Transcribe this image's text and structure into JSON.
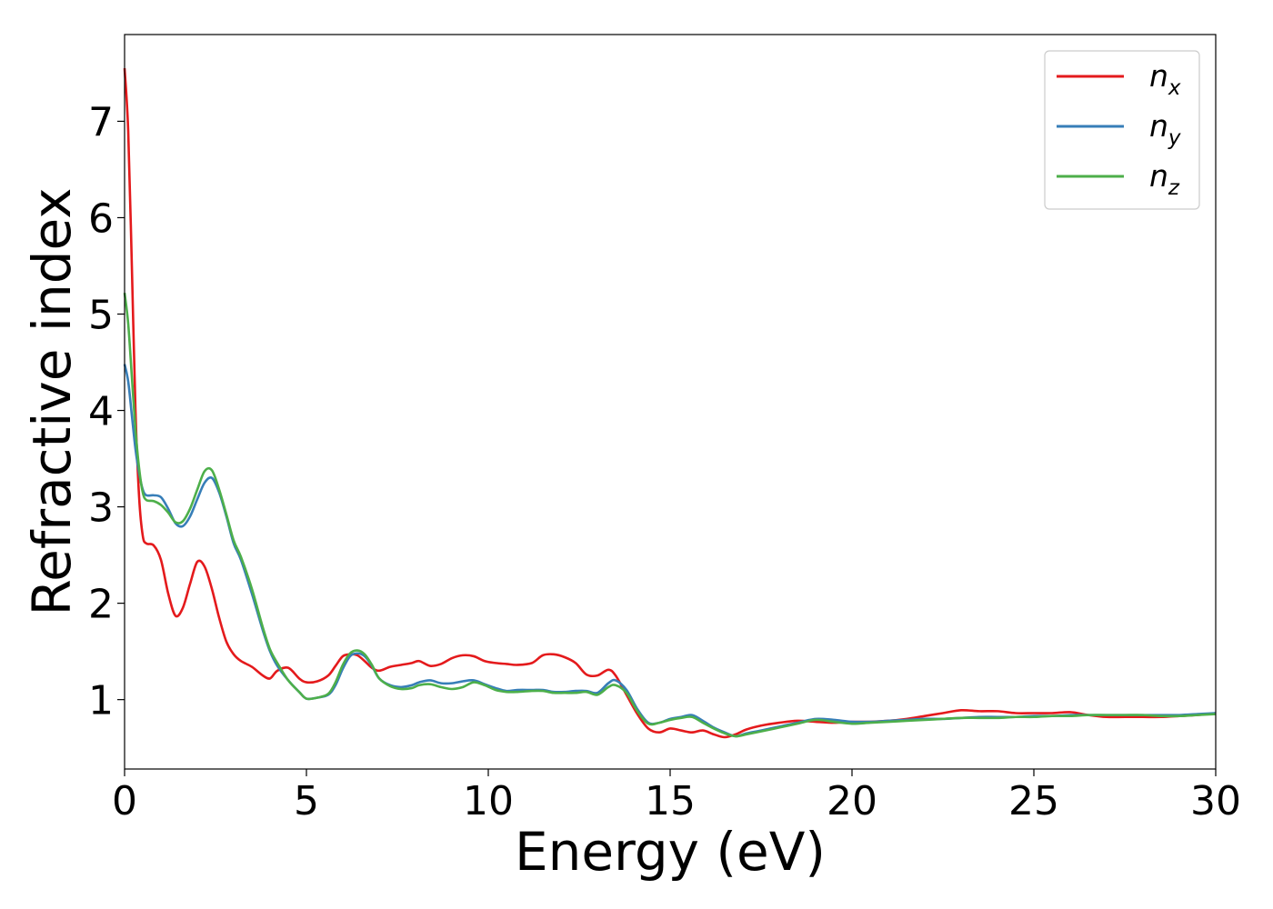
{
  "chart_data": {
    "type": "line",
    "title": "",
    "xlabel": "Energy (eV)",
    "ylabel": "Refractive index",
    "xlim": [
      0,
      30
    ],
    "ylim": [
      0.28,
      7.9
    ],
    "x_ticks": [
      "0",
      "5",
      "10",
      "15",
      "20",
      "25",
      "30"
    ],
    "y_ticks": [
      "1",
      "2",
      "3",
      "4",
      "5",
      "6",
      "7"
    ],
    "grid": false,
    "legend_position": "top-right",
    "series": [
      {
        "name": "n",
        "subscript": "x",
        "color": "#e41a1c",
        "x": [
          0,
          0.1,
          0.2,
          0.3,
          0.4,
          0.5,
          0.6,
          0.8,
          1.0,
          1.2,
          1.4,
          1.6,
          1.8,
          2.0,
          2.2,
          2.4,
          2.6,
          2.8,
          3.0,
          3.2,
          3.5,
          3.8,
          4.0,
          4.2,
          4.5,
          4.8,
          5.0,
          5.3,
          5.6,
          5.8,
          6.0,
          6.2,
          6.4,
          6.6,
          6.8,
          7.0,
          7.3,
          7.6,
          7.9,
          8.1,
          8.4,
          8.7,
          9.0,
          9.3,
          9.6,
          9.9,
          10.2,
          10.5,
          10.8,
          11.2,
          11.5,
          11.8,
          12.1,
          12.4,
          12.7,
          13.0,
          13.3,
          13.5,
          13.8,
          14.1,
          14.4,
          14.7,
          15.0,
          15.3,
          15.6,
          15.9,
          16.2,
          16.5,
          16.8,
          17.1,
          17.5,
          18.0,
          18.5,
          19.0,
          19.5,
          20.0,
          20.5,
          21.0,
          21.5,
          22.0,
          22.5,
          23.0,
          23.5,
          24.0,
          24.5,
          25.0,
          25.5,
          26.0,
          26.5,
          27.0,
          27.5,
          28.0,
          28.5,
          29.0,
          29.5,
          30.0
        ],
        "y": [
          7.55,
          6.9,
          5.5,
          4.0,
          3.1,
          2.7,
          2.62,
          2.6,
          2.45,
          2.1,
          1.87,
          1.95,
          2.2,
          2.43,
          2.38,
          2.15,
          1.85,
          1.6,
          1.47,
          1.4,
          1.34,
          1.25,
          1.22,
          1.3,
          1.33,
          1.22,
          1.18,
          1.19,
          1.25,
          1.35,
          1.45,
          1.47,
          1.46,
          1.4,
          1.33,
          1.3,
          1.34,
          1.36,
          1.38,
          1.4,
          1.35,
          1.37,
          1.43,
          1.46,
          1.45,
          1.4,
          1.38,
          1.37,
          1.36,
          1.38,
          1.46,
          1.47,
          1.44,
          1.38,
          1.26,
          1.25,
          1.31,
          1.25,
          1.05,
          0.85,
          0.7,
          0.66,
          0.7,
          0.68,
          0.66,
          0.68,
          0.64,
          0.61,
          0.64,
          0.69,
          0.73,
          0.76,
          0.78,
          0.77,
          0.76,
          0.77,
          0.77,
          0.78,
          0.8,
          0.83,
          0.86,
          0.89,
          0.88,
          0.88,
          0.86,
          0.86,
          0.86,
          0.87,
          0.84,
          0.82,
          0.82,
          0.82,
          0.82,
          0.83,
          0.84,
          0.86
        ]
      },
      {
        "name": "n",
        "subscript": "y",
        "color": "#377eb8",
        "x": [
          0,
          0.1,
          0.2,
          0.3,
          0.4,
          0.5,
          0.6,
          0.8,
          1.0,
          1.2,
          1.4,
          1.6,
          1.8,
          2.0,
          2.2,
          2.4,
          2.6,
          2.8,
          3.0,
          3.2,
          3.5,
          3.8,
          4.0,
          4.2,
          4.5,
          4.8,
          5.0,
          5.3,
          5.6,
          5.8,
          6.0,
          6.2,
          6.4,
          6.6,
          6.8,
          7.0,
          7.3,
          7.6,
          7.9,
          8.1,
          8.4,
          8.7,
          9.0,
          9.3,
          9.6,
          9.9,
          10.2,
          10.5,
          10.8,
          11.2,
          11.5,
          11.8,
          12.1,
          12.4,
          12.7,
          13.0,
          13.3,
          13.5,
          13.8,
          14.1,
          14.4,
          14.7,
          15.0,
          15.3,
          15.6,
          15.9,
          16.2,
          16.5,
          16.8,
          17.1,
          17.5,
          18.0,
          18.5,
          19.0,
          19.5,
          20.0,
          20.5,
          21.0,
          21.5,
          22.0,
          22.5,
          23.0,
          23.5,
          24.0,
          24.5,
          25.0,
          25.5,
          26.0,
          26.5,
          27.0,
          27.5,
          28.0,
          28.5,
          29.0,
          29.5,
          30.0
        ],
        "y": [
          4.48,
          4.3,
          3.95,
          3.6,
          3.35,
          3.18,
          3.12,
          3.12,
          3.1,
          2.98,
          2.83,
          2.8,
          2.9,
          3.08,
          3.25,
          3.3,
          3.15,
          2.9,
          2.62,
          2.45,
          2.1,
          1.72,
          1.5,
          1.35,
          1.2,
          1.08,
          1.01,
          1.02,
          1.05,
          1.15,
          1.32,
          1.45,
          1.48,
          1.45,
          1.35,
          1.22,
          1.15,
          1.13,
          1.15,
          1.18,
          1.2,
          1.17,
          1.17,
          1.19,
          1.2,
          1.16,
          1.12,
          1.09,
          1.1,
          1.1,
          1.1,
          1.08,
          1.08,
          1.09,
          1.09,
          1.07,
          1.17,
          1.2,
          1.1,
          0.9,
          0.76,
          0.76,
          0.8,
          0.82,
          0.84,
          0.78,
          0.71,
          0.66,
          0.62,
          0.65,
          0.68,
          0.72,
          0.76,
          0.8,
          0.79,
          0.77,
          0.77,
          0.78,
          0.79,
          0.8,
          0.8,
          0.81,
          0.82,
          0.82,
          0.82,
          0.83,
          0.83,
          0.84,
          0.84,
          0.84,
          0.84,
          0.84,
          0.84,
          0.84,
          0.85,
          0.86
        ]
      },
      {
        "name": "n",
        "subscript": "z",
        "color": "#4daf4a",
        "x": [
          0,
          0.1,
          0.2,
          0.3,
          0.4,
          0.5,
          0.6,
          0.8,
          1.0,
          1.2,
          1.4,
          1.6,
          1.8,
          2.0,
          2.2,
          2.4,
          2.6,
          2.8,
          3.0,
          3.2,
          3.5,
          3.8,
          4.0,
          4.2,
          4.5,
          4.8,
          5.0,
          5.3,
          5.6,
          5.8,
          6.0,
          6.2,
          6.4,
          6.6,
          6.8,
          7.0,
          7.3,
          7.6,
          7.9,
          8.1,
          8.4,
          8.7,
          9.0,
          9.3,
          9.6,
          9.9,
          10.2,
          10.5,
          10.8,
          11.2,
          11.5,
          11.8,
          12.1,
          12.4,
          12.7,
          13.0,
          13.3,
          13.5,
          13.8,
          14.1,
          14.4,
          14.7,
          15.0,
          15.3,
          15.6,
          15.9,
          16.2,
          16.5,
          16.8,
          17.1,
          17.5,
          18.0,
          18.5,
          19.0,
          19.5,
          20.0,
          20.5,
          21.0,
          21.5,
          22.0,
          22.5,
          23.0,
          23.5,
          24.0,
          24.5,
          25.0,
          25.5,
          26.0,
          26.5,
          27.0,
          27.5,
          28.0,
          28.5,
          29.0,
          29.5,
          30.0
        ],
        "y": [
          5.22,
          4.9,
          4.35,
          3.8,
          3.4,
          3.15,
          3.07,
          3.06,
          3.02,
          2.94,
          2.84,
          2.85,
          2.98,
          3.18,
          3.37,
          3.38,
          3.18,
          2.92,
          2.65,
          2.48,
          2.15,
          1.75,
          1.52,
          1.38,
          1.2,
          1.08,
          1.01,
          1.02,
          1.06,
          1.18,
          1.36,
          1.48,
          1.51,
          1.47,
          1.36,
          1.22,
          1.14,
          1.11,
          1.12,
          1.15,
          1.16,
          1.13,
          1.11,
          1.13,
          1.18,
          1.15,
          1.1,
          1.08,
          1.08,
          1.09,
          1.09,
          1.07,
          1.07,
          1.07,
          1.08,
          1.05,
          1.13,
          1.15,
          1.07,
          0.88,
          0.75,
          0.76,
          0.79,
          0.81,
          0.82,
          0.76,
          0.7,
          0.65,
          0.62,
          0.64,
          0.67,
          0.71,
          0.75,
          0.79,
          0.77,
          0.75,
          0.76,
          0.77,
          0.78,
          0.79,
          0.8,
          0.81,
          0.81,
          0.81,
          0.82,
          0.82,
          0.83,
          0.83,
          0.84,
          0.84,
          0.84,
          0.84,
          0.83,
          0.83,
          0.84,
          0.85
        ]
      }
    ]
  }
}
